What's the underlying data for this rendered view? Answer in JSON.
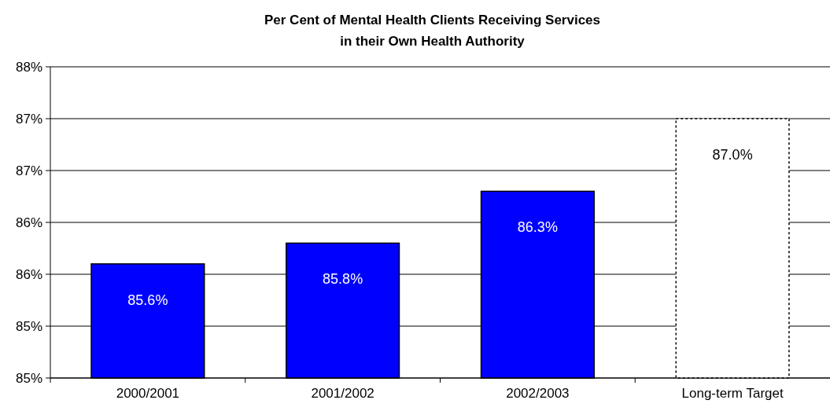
{
  "chart_data": {
    "type": "bar",
    "title": "Per Cent of Mental Health Clients Receiving Services\nin their Own Health Authority",
    "categories": [
      "2000/2001",
      "2001/2002",
      "2002/2003",
      "Long-term Target"
    ],
    "series": [
      {
        "color": "#0000ff",
        "values": [
          85.6,
          85.8,
          86.3,
          null
        ],
        "value_labels": [
          "85.6%",
          "85.8%",
          "86.3%",
          null
        ]
      },
      {
        "color": "#ffffff",
        "values": [
          null,
          null,
          null,
          87.0
        ],
        "value_labels": [
          null,
          null,
          null,
          "87.0%"
        ],
        "line_style": "dotted"
      }
    ],
    "ylim": [
      84.5,
      87.5
    ],
    "yticks": [
      {
        "value": 84.5,
        "label": "85%"
      },
      {
        "value": 85,
        "label": "85%"
      },
      {
        "value": 85.5,
        "label": "86%"
      },
      {
        "value": 86,
        "label": "86%"
      },
      {
        "value": 86.5,
        "label": "87%"
      },
      {
        "value": 87,
        "label": "87%"
      },
      {
        "value": 87.5,
        "label": "88%"
      }
    ],
    "grid": "y"
  }
}
